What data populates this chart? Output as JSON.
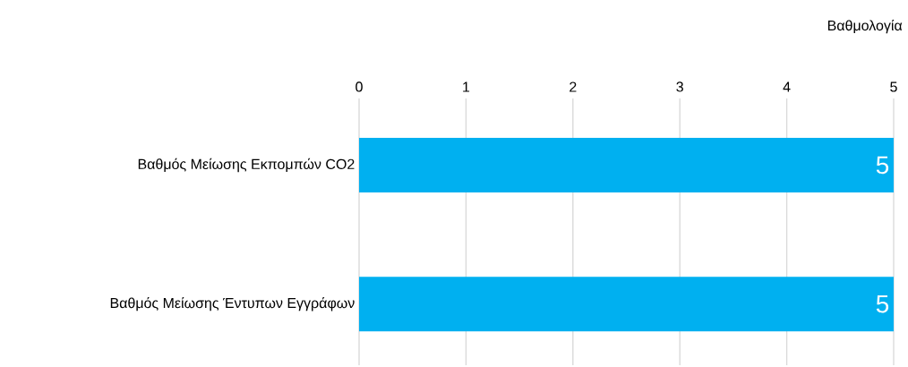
{
  "chart_data": {
    "type": "bar",
    "orientation": "horizontal",
    "xlabel": "Βαθμολογία",
    "categories": [
      "Βαθμός Μείωσης Εκπομπών CO2",
      "Βαθμός Μείωσης Έντυπων Εγγράφων"
    ],
    "values": [
      5,
      5
    ],
    "color": "#00b0f0",
    "xlim": [
      0,
      5
    ],
    "xticks": [
      0,
      1,
      2,
      3,
      4,
      5
    ],
    "grid": "x",
    "data_labels": true
  }
}
